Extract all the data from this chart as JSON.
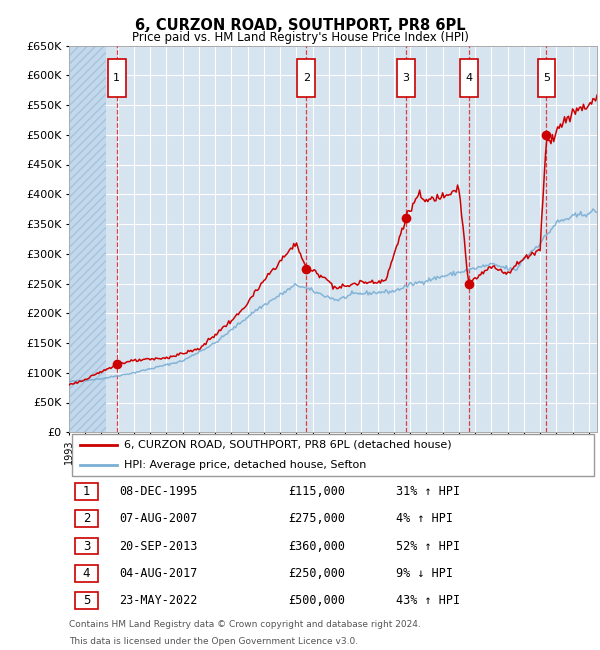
{
  "title": "6, CURZON ROAD, SOUTHPORT, PR8 6PL",
  "subtitle": "Price paid vs. HM Land Registry's House Price Index (HPI)",
  "ylim": [
    0,
    650000
  ],
  "yticks": [
    0,
    50000,
    100000,
    150000,
    200000,
    250000,
    300000,
    350000,
    400000,
    450000,
    500000,
    550000,
    600000,
    650000
  ],
  "background_color": "#d6e4f0",
  "grid_color": "#ffffff",
  "red_line_color": "#cc0000",
  "blue_line_color": "#7aafd4",
  "sale_marker_color": "#cc0000",
  "vline_color": "#dd2222",
  "transactions": [
    {
      "label": 1,
      "date_str": "08-DEC-1995",
      "date_x": 1995.94,
      "price": 115000,
      "pct": "31%",
      "dir": "↑"
    },
    {
      "label": 2,
      "date_str": "07-AUG-2007",
      "date_x": 2007.6,
      "price": 275000,
      "pct": "4%",
      "dir": "↑"
    },
    {
      "label": 3,
      "date_str": "20-SEP-2013",
      "date_x": 2013.72,
      "price": 360000,
      "pct": "52%",
      "dir": "↑"
    },
    {
      "label": 4,
      "date_str": "04-AUG-2017",
      "date_x": 2017.6,
      "price": 250000,
      "pct": "9%",
      "dir": "↓"
    },
    {
      "label": 5,
      "date_str": "23-MAY-2022",
      "date_x": 2022.39,
      "price": 500000,
      "pct": "43%",
      "dir": "↑"
    }
  ],
  "legend_line1": "6, CURZON ROAD, SOUTHPORT, PR8 6PL (detached house)",
  "legend_line2": "HPI: Average price, detached house, Sefton",
  "footer1": "Contains HM Land Registry data © Crown copyright and database right 2024.",
  "footer2": "This data is licensed under the Open Government Licence v3.0.",
  "xmin": 1993.0,
  "xmax": 2025.5,
  "hpi_checkpoints": {
    "1993.0": 85000,
    "1995.0": 90000,
    "1997.0": 100000,
    "2000.0": 120000,
    "2002.0": 150000,
    "2004.5": 205000,
    "2007.0": 248000,
    "2008.5": 232000,
    "2009.5": 222000,
    "2010.5": 232000,
    "2013.0": 237000,
    "2014.0": 248000,
    "2016.0": 262000,
    "2017.5": 272000,
    "2019.0": 282000,
    "2020.5": 272000,
    "2021.0": 292000,
    "2022.0": 318000,
    "2023.0": 352000,
    "2024.0": 362000,
    "2025.5": 372000
  },
  "red_checkpoints": {
    "1993.0": 80000,
    "1994.0": 88000,
    "1995.94": 115000,
    "1997.0": 120000,
    "1999.0": 125000,
    "2001.0": 140000,
    "2003.5": 200000,
    "2005.5": 272000,
    "2007.0": 318000,
    "2007.6": 275000,
    "2008.5": 265000,
    "2009.5": 242000,
    "2011.0": 252000,
    "2012.5": 255000,
    "2013.72": 360000,
    "2014.5": 398000,
    "2015.0": 388000,
    "2016.0": 398000,
    "2017.0": 412000,
    "2017.6": 250000,
    "2018.0": 258000,
    "2019.0": 278000,
    "2020.0": 268000,
    "2021.0": 292000,
    "2022.0": 308000,
    "2022.39": 500000,
    "2022.7": 488000,
    "2023.0": 508000,
    "2023.5": 522000,
    "2024.0": 538000,
    "2025.0": 552000,
    "2025.5": 562000
  }
}
